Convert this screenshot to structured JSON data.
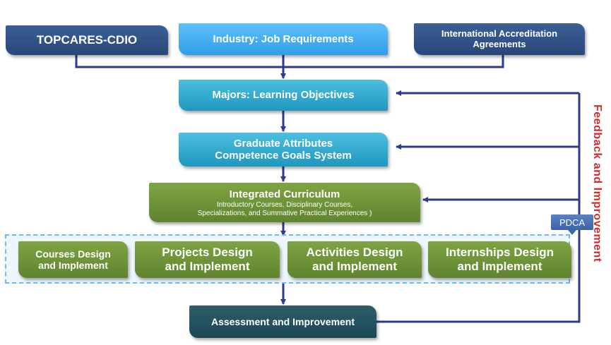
{
  "diagram": {
    "topcares": "TOPCARES-CDIO",
    "industry": "Industry: Job Requirements",
    "international": "International Accreditation Agreements",
    "majors": "Majors: Learning Objectives",
    "graduate_line1": "Graduate Attributes",
    "graduate_line2": "Competence Goals System",
    "curriculum_title": "Integrated Curriculum",
    "curriculum_sub_line1": "Introductory Courses, Disciplinary Courses,",
    "curriculum_sub_line2": "Specializations, and Summative Practical Experiences )",
    "courses_line1": "Courses Design",
    "courses_line2": "and Implement",
    "projects_line1": "Projects Design",
    "projects_line2": "and Implement",
    "activities_line1": "Activities Design",
    "activities_line2": "and Implement",
    "internships_line1": "Internships Design",
    "internships_line2": "and Implement",
    "assessment": "Assessment and Improvement",
    "pdca": "PDCA",
    "feedback": "Feedback and Improvement"
  },
  "colors": {
    "arrow": "#2e3a8c",
    "feedback_text": "#d42b2b",
    "navy_box": "#2f5288",
    "sky_box": "#3eaaf0",
    "teal_box": "#29a6cf",
    "olive_box": "#6e9538",
    "dark_teal_box": "#24505d"
  }
}
